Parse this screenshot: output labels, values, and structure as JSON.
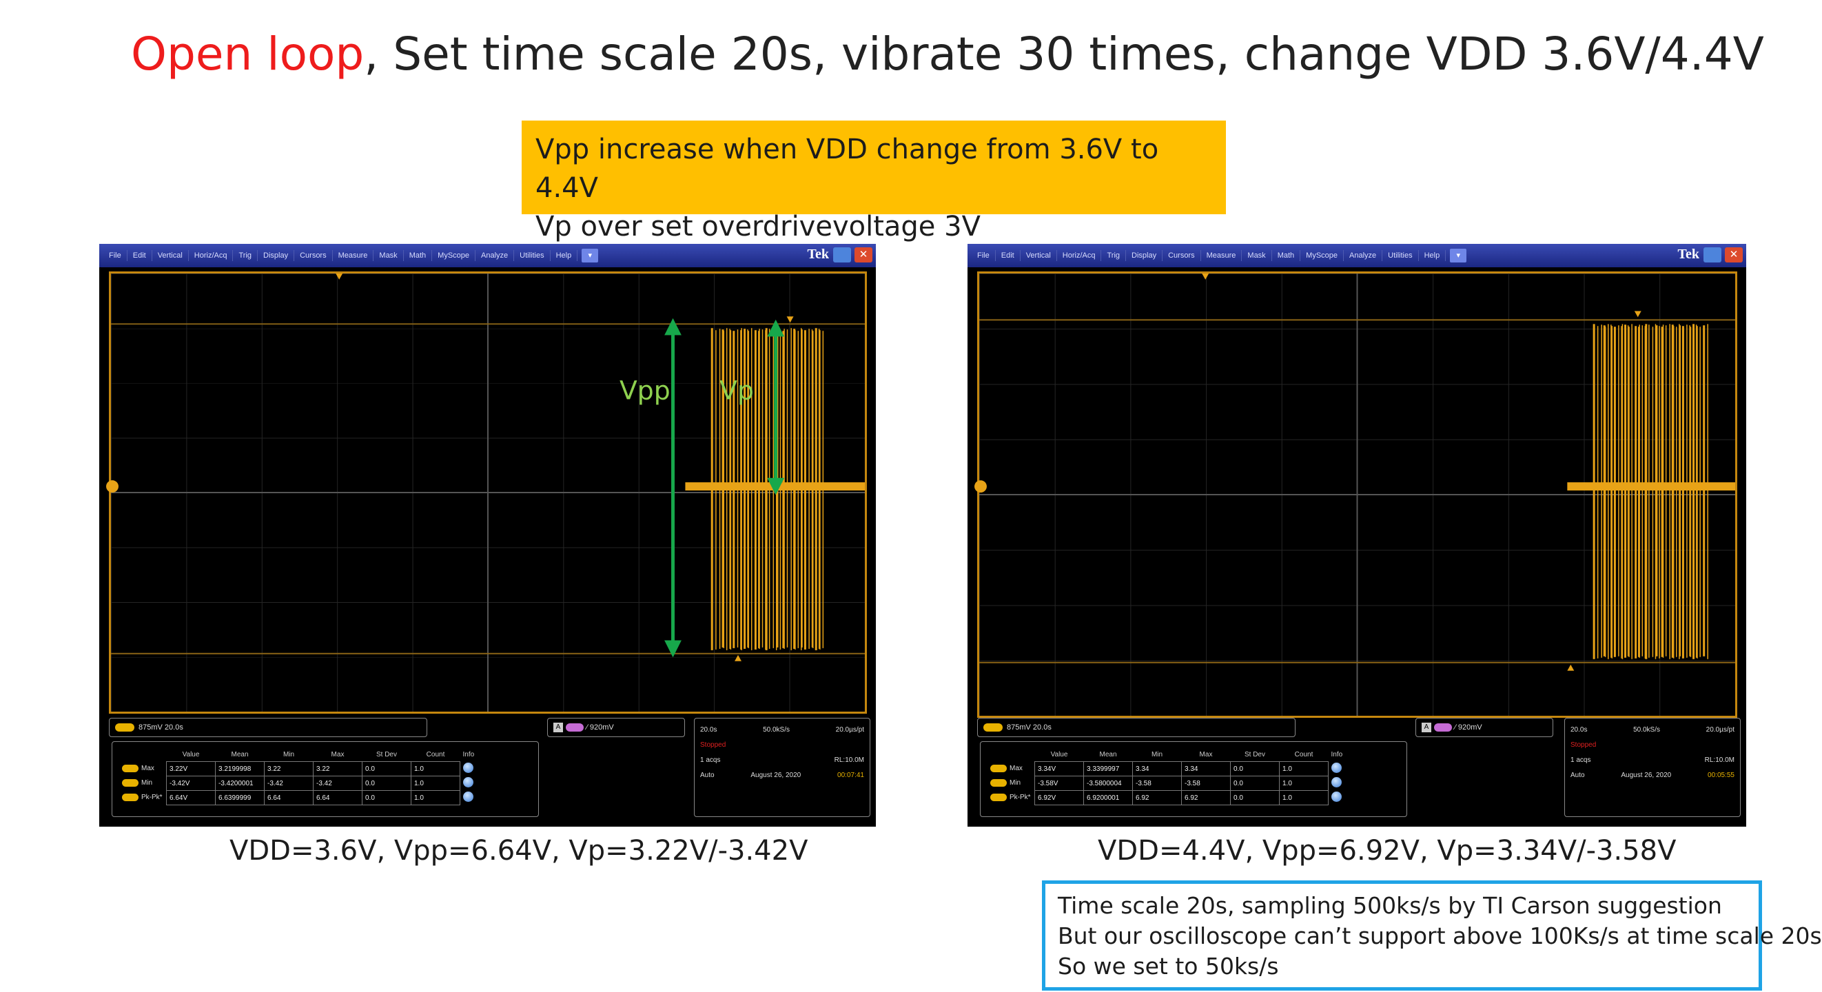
{
  "title": {
    "highlight": "Open loop",
    "rest": ", Set time scale 20s, vibrate 30 times, change VDD 3.6V/4.4V"
  },
  "callout": {
    "line1": "Vpp increase when VDD change from 3.6V to 4.4V",
    "line2": "Vp over set overdrivevoltage 3V"
  },
  "scope_menu": [
    "File",
    "Edit",
    "Vertical",
    "Horiz/Acq",
    "Trig",
    "Display",
    "Cursors",
    "Measure",
    "Mask",
    "Math",
    "MyScope",
    "Analyze",
    "Utilities",
    "Help"
  ],
  "scope_brand": "Tek",
  "table_headers": [
    "",
    "Value",
    "Mean",
    "Min",
    "Max",
    "St Dev",
    "Count",
    "Info"
  ],
  "scopes": {
    "left": {
      "annot_vpp": "Vpp",
      "annot_vp": "Vp",
      "ch1": "875mV  20.0s",
      "trigger": "920mV",
      "rows": [
        {
          "label": "Max",
          "value": "3.22V",
          "mean": "3.2199998",
          "min": "3.22",
          "max": "3.22",
          "stdev": "0.0",
          "count": "1.0"
        },
        {
          "label": "Min",
          "value": "-3.42V",
          "mean": "-3.4200001",
          "min": "-3.42",
          "max": "-3.42",
          "stdev": "0.0",
          "count": "1.0"
        },
        {
          "label": "Pk-Pk*",
          "value": "6.64V",
          "mean": "6.6399999",
          "min": "6.64",
          "max": "6.64",
          "stdev": "0.0",
          "count": "1.0"
        }
      ],
      "acq": {
        "timebase": "20.0s",
        "rate": "50.0kS/s",
        "per_pt": "20.0µs/pt",
        "state": "Stopped",
        "acqs": "1 acqs",
        "rl": "RL:10.0M",
        "mode": "Auto",
        "date": "August 26, 2020",
        "time": "00:07:41"
      },
      "caption": "VDD=3.6V, Vpp=6.64V, Vp=3.22V/-3.42V"
    },
    "right": {
      "ch1": "875mV  20.0s",
      "trigger": "920mV",
      "rows": [
        {
          "label": "Max",
          "value": "3.34V",
          "mean": "3.3399997",
          "min": "3.34",
          "max": "3.34",
          "stdev": "0.0",
          "count": "1.0"
        },
        {
          "label": "Min",
          "value": "-3.58V",
          "mean": "-3.5800004",
          "min": "-3.58",
          "max": "-3.58",
          "stdev": "0.0",
          "count": "1.0"
        },
        {
          "label": "Pk-Pk*",
          "value": "6.92V",
          "mean": "6.9200001",
          "min": "6.92",
          "max": "6.92",
          "stdev": "0.0",
          "count": "1.0"
        }
      ],
      "acq": {
        "timebase": "20.0s",
        "rate": "50.0kS/s",
        "per_pt": "20.0µs/pt",
        "state": "Stopped",
        "acqs": "1 acqs",
        "rl": "RL:10.0M",
        "mode": "Auto",
        "date": "August 26, 2020",
        "time": "00:05:55"
      },
      "caption": "VDD=4.4V, Vpp=6.92V, Vp=3.34V/-3.58V"
    }
  },
  "note": {
    "line1": "Time scale 20s, sampling 500ks/s by TI Carson suggestion",
    "line2": "But our oscilloscope can’t support above 100Ks/s at time scale 20s",
    "line3": "So we set to 50ks/s"
  },
  "colors": {
    "title_highlight": "#ee1c1c",
    "callout_bg": "#ffbf00",
    "trace": "#e8a317",
    "annotation_green": "#8fd14f",
    "arrow_green": "#17a84b",
    "note_border": "#1fa3e6"
  }
}
